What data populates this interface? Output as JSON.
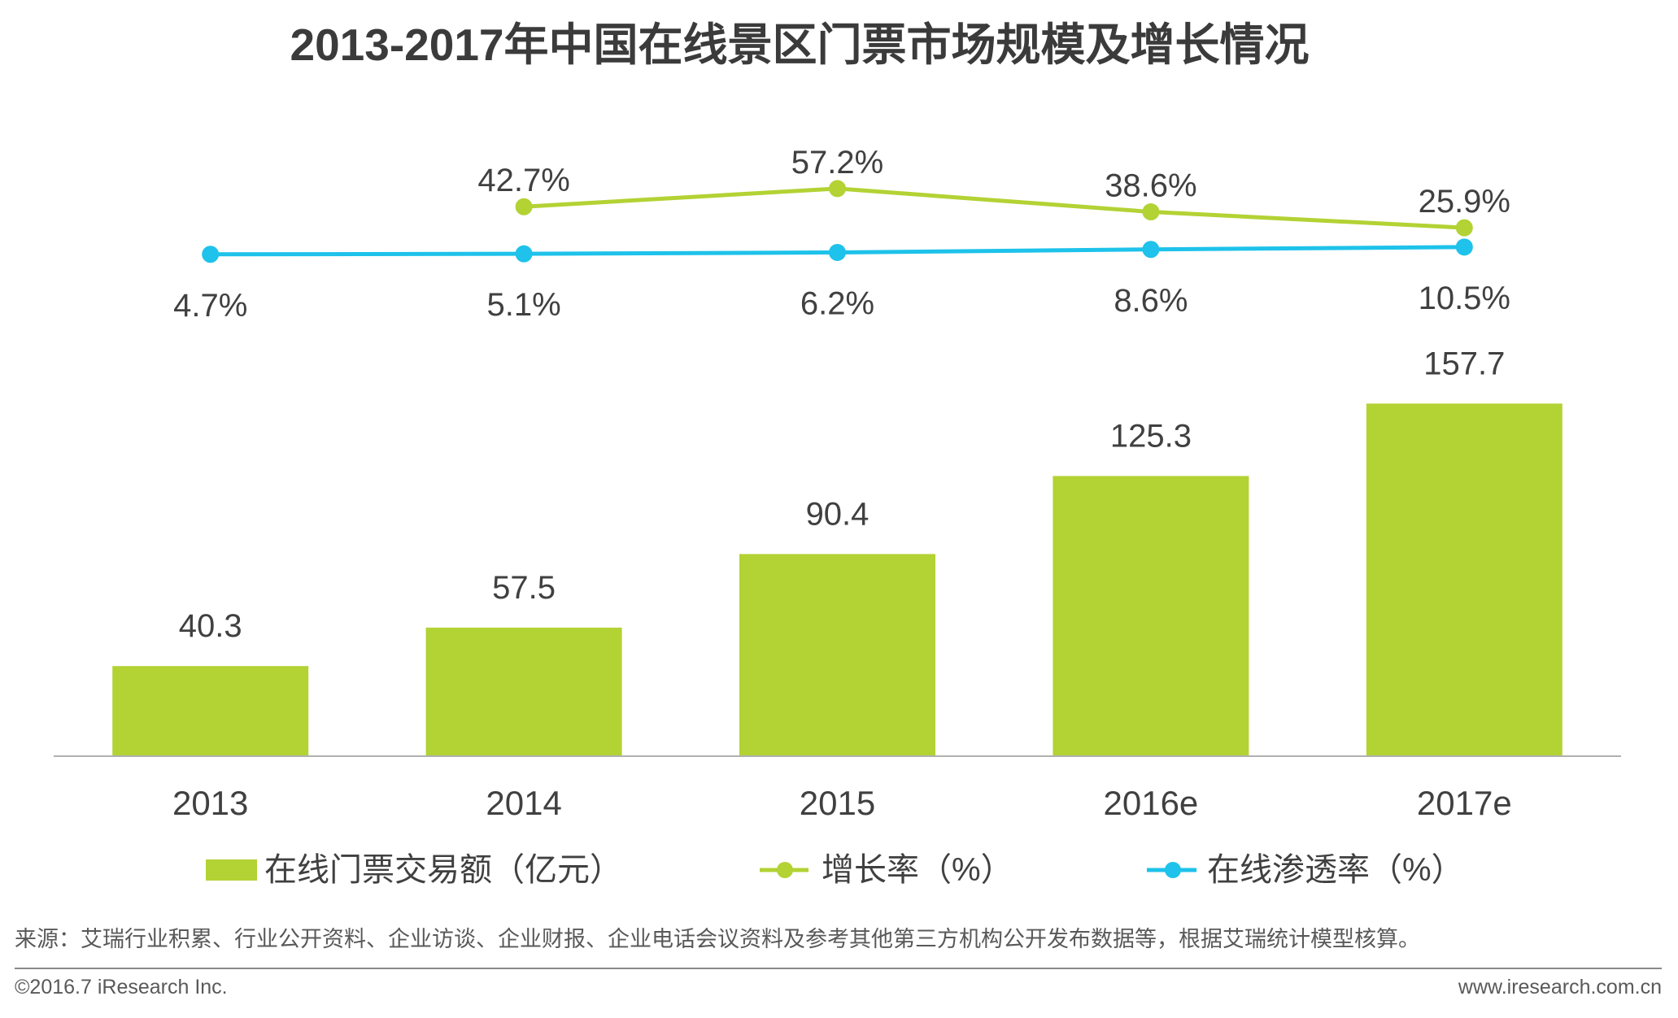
{
  "chart_data": {
    "type": "bar",
    "title": "2013-2017年中国在线景区门票市场规模及增长情况",
    "categories": [
      "2013",
      "2014",
      "2015",
      "2016e",
      "2017e"
    ],
    "series": [
      {
        "name": "在线门票交易额（亿元）",
        "type": "bar",
        "values": [
          40.3,
          57.5,
          90.4,
          125.3,
          157.7
        ],
        "value_suffix": "",
        "color": "#b3d234"
      },
      {
        "name": "增长率（%）",
        "type": "line",
        "values": [
          null,
          42.7,
          57.2,
          38.6,
          25.9
        ],
        "value_suffix": "%",
        "color": "#b3d234"
      },
      {
        "name": "在线渗透率（%）",
        "type": "line",
        "values": [
          4.7,
          5.1,
          6.2,
          8.6,
          10.5
        ],
        "value_suffix": "%",
        "color": "#1ec2ea"
      }
    ],
    "ylim": [
      0,
      200
    ],
    "y2lim": [
      0,
      100
    ],
    "grid": false,
    "legend_position": "bottom"
  },
  "source": "来源：艾瑞行业积累、行业公开资料、企业访谈、企业财报、企业电话会议资料及参考其他第三方机构公开发布数据等，根据艾瑞统计模型核算。",
  "footer": {
    "copyright": "©2016.7 iResearch Inc.",
    "website": "www.iresearch.com.cn"
  }
}
